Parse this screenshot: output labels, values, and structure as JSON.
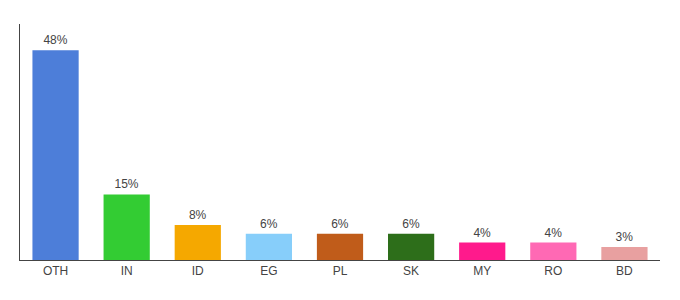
{
  "chart_data": {
    "type": "bar",
    "categories": [
      "OTH",
      "IN",
      "ID",
      "EG",
      "PL",
      "SK",
      "MY",
      "RO",
      "BD"
    ],
    "values": [
      48,
      15,
      8,
      6,
      6,
      6,
      4,
      4,
      3
    ],
    "value_labels": [
      "48%",
      "15%",
      "8%",
      "6%",
      "6%",
      "6%",
      "4%",
      "4%",
      "3%"
    ],
    "colors": [
      "#4d7ed9",
      "#33cc33",
      "#f5a800",
      "#87cefa",
      "#c05c1a",
      "#2d6e1a",
      "#ff1a8c",
      "#ff69b4",
      "#e8a0a0"
    ],
    "ylim": [
      0,
      54
    ],
    "grid": false,
    "data_labels": true,
    "tick_labels": "x"
  }
}
